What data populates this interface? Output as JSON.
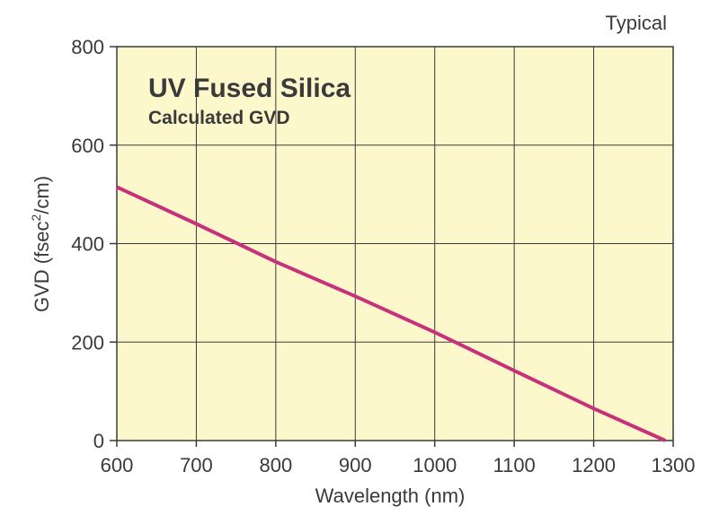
{
  "chart_data": {
    "type": "line",
    "title": "UV Fused Silica",
    "subtitle": "Calculated GVD",
    "note": "Typical",
    "xlabel": "Wavelength (nm)",
    "ylabel": {
      "main": "GVD (fsec",
      "superscript": "2",
      "tail": "/cm)"
    },
    "xlim": [
      600,
      1300
    ],
    "ylim": [
      0,
      800
    ],
    "x_ticks": [
      600,
      700,
      800,
      900,
      1000,
      1100,
      1200,
      1300
    ],
    "y_ticks": [
      0,
      200,
      400,
      600,
      800
    ],
    "grid": true,
    "series": [
      {
        "x": [
          600,
          700,
          800,
          900,
          1000,
          1100,
          1200,
          1290
        ],
        "y": [
          515,
          440,
          363,
          293,
          220,
          142,
          65,
          0
        ],
        "color": "#c8317a"
      }
    ],
    "colors": {
      "plot_background": "#fcf8cc",
      "grid": "#3a3a3a",
      "line": "#c8317a"
    }
  }
}
